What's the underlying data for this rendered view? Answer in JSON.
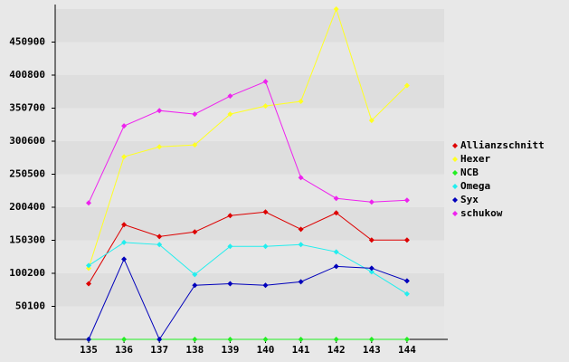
{
  "chart_data": {
    "type": "line",
    "categories": [
      "135",
      "136",
      "137",
      "138",
      "139",
      "140",
      "141",
      "142",
      "143",
      "144"
    ],
    "series": [
      {
        "name": "Allianzschnitt",
        "color": "#dd0000",
        "values": [
          84500,
          174000,
          156000,
          163000,
          187700,
          193200,
          167000,
          191800,
          150600,
          150600
        ]
      },
      {
        "name": "Hexer",
        "color": "#ffff22",
        "values": [
          108000,
          277000,
          292000,
          295000,
          341600,
          354000,
          361000,
          501000,
          332000,
          385000
        ]
      },
      {
        "name": "NCB",
        "color": "#22ee22",
        "values": [
          0,
          0,
          0,
          0,
          0,
          0,
          0,
          0,
          0,
          0
        ]
      },
      {
        "name": "Omega",
        "color": "#22eeee",
        "values": [
          112000,
          147000,
          143700,
          98300,
          141000,
          141000,
          143700,
          132700,
          102400,
          69000
        ]
      },
      {
        "name": "Syx",
        "color": "#0000bb",
        "values": [
          0,
          121700,
          0,
          82000,
          84500,
          82000,
          87400,
          110700,
          108000,
          88700
        ]
      },
      {
        "name": "schukow",
        "color": "#ee22ee",
        "values": [
          207000,
          323700,
          347000,
          341600,
          369000,
          391000,
          245400,
          213800,
          208300,
          211000
        ]
      }
    ],
    "ylim": [
      0,
      501000
    ],
    "yticks": [
      50100,
      100200,
      150300,
      200400,
      250500,
      300600,
      350700,
      400800,
      450900
    ],
    "grid": true
  }
}
